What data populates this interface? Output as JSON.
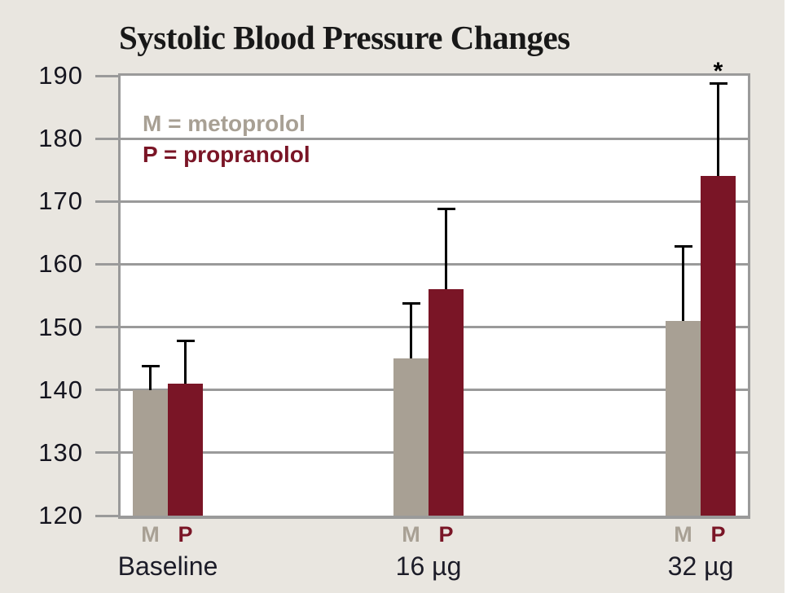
{
  "title": "Systolic Blood Pressure Changes",
  "legend": {
    "entries": [
      {
        "text": "M = metoprolol",
        "series": "M"
      },
      {
        "text": "P = propranolol",
        "series": "P"
      }
    ],
    "position": "top-left-inside"
  },
  "chart_data": {
    "type": "bar",
    "categories": [
      "Baseline",
      "16 µg",
      "32 µg"
    ],
    "series": [
      {
        "name": "M",
        "label": "metoprolol",
        "color": "#a8a094",
        "values": [
          140,
          145,
          151
        ],
        "error_plus": [
          4,
          9,
          12
        ]
      },
      {
        "name": "P",
        "label": "propranolol",
        "color": "#7a1526",
        "values": [
          141,
          156,
          174
        ],
        "error_plus": [
          7,
          13,
          15
        ]
      }
    ],
    "title": "Systolic Blood Pressure Changes",
    "xlabel": "",
    "ylabel": "",
    "ylim": [
      120,
      190
    ],
    "yticks": [
      120,
      130,
      140,
      150,
      160,
      170,
      180,
      190
    ],
    "grid": true,
    "legend_position": "top-left-inside",
    "annotations": [
      {
        "text": "*",
        "category": "32 µg",
        "series": "P",
        "meaning": "significance-marker"
      }
    ]
  },
  "colors": {
    "panel_background": "#e9e6e0",
    "page_background": "#ffffff",
    "plot_background": "#ffffff",
    "grid_and_border": "#9a9a9a",
    "axis_text": "#15151f",
    "category_text": "#1c1c28",
    "title_text": "#181818",
    "error_bar": "#000000",
    "bar_metoprolol": "#a8a094",
    "bar_propranolol": "#7a1526"
  }
}
